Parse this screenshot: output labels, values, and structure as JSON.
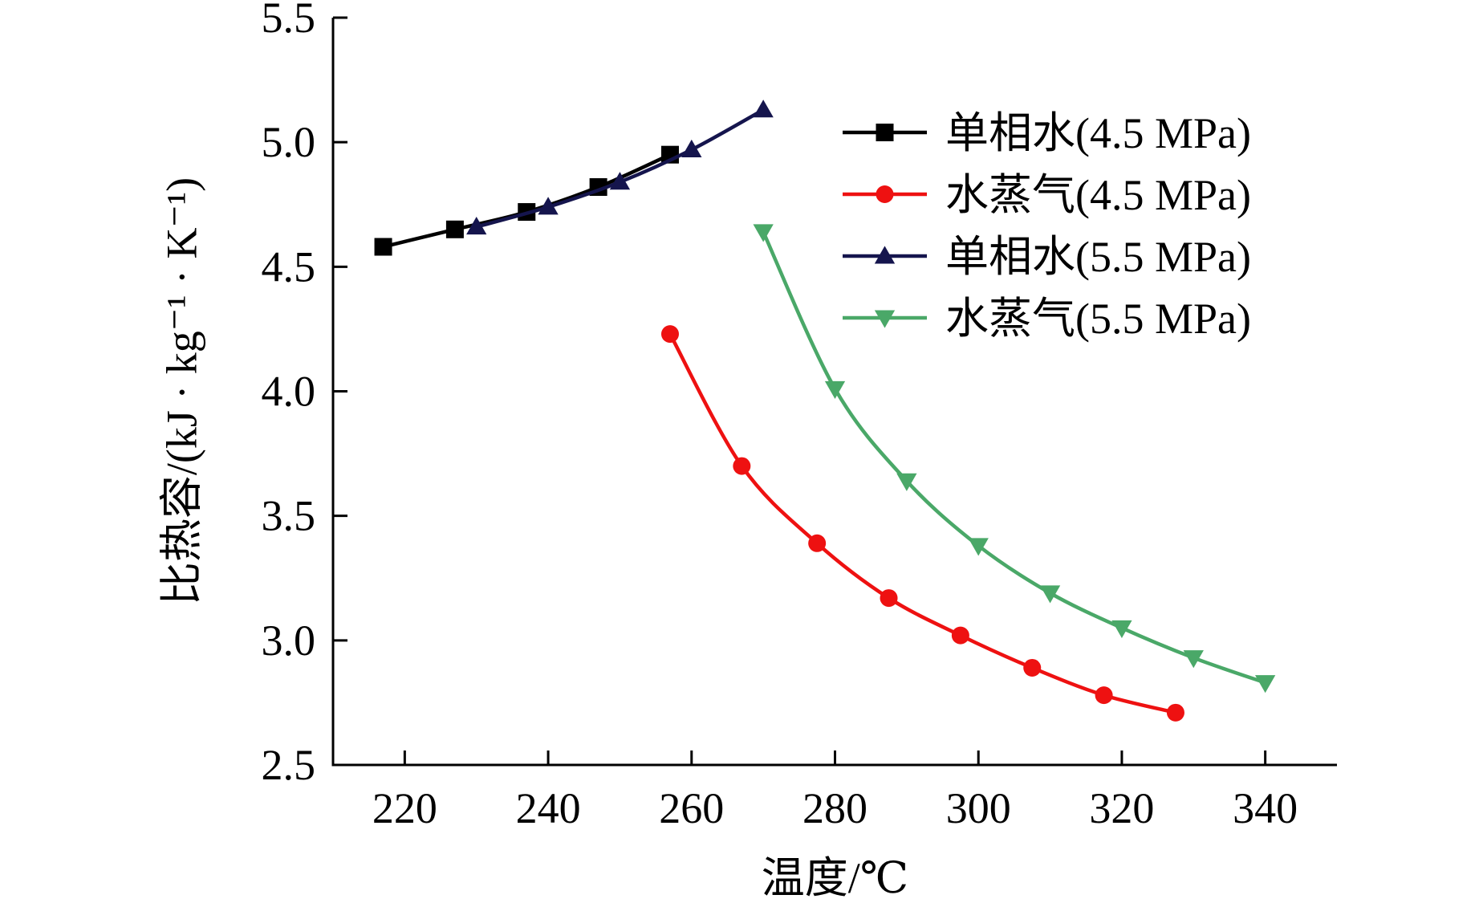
{
  "chart_data": {
    "type": "line",
    "title": "",
    "xlabel": "温度/℃",
    "ylabel": "比热容/(kJ · kg⁻¹ · K⁻¹)",
    "xlim": [
      210,
      350
    ],
    "ylim": [
      2.5,
      5.5
    ],
    "xticks": [
      220,
      240,
      260,
      280,
      300,
      320,
      340
    ],
    "yticks": [
      "2.5",
      "3.0",
      "3.5",
      "4.0",
      "4.5",
      "5.0",
      "5.5"
    ],
    "legend_position": "top-right",
    "series": [
      {
        "name": "单相水(4.5 MPa)",
        "color": "#000000",
        "marker": "square",
        "x": [
          217,
          227,
          237,
          247,
          257
        ],
        "y": [
          4.58,
          4.65,
          4.72,
          4.82,
          4.95
        ]
      },
      {
        "name": "水蒸气(4.5 MPa)",
        "color": "#ee1111",
        "marker": "circle",
        "x": [
          257,
          267,
          277.5,
          287.5,
          297.5,
          307.5,
          317.5,
          327.5
        ],
        "y": [
          4.23,
          3.7,
          3.39,
          3.17,
          3.02,
          2.89,
          2.78,
          2.71
        ]
      },
      {
        "name": "单相水(5.5 MPa)",
        "color": "#15154d",
        "marker": "triangle-up",
        "x": [
          230,
          240,
          250,
          260,
          270
        ],
        "y": [
          4.66,
          4.74,
          4.84,
          4.97,
          5.13
        ]
      },
      {
        "name": "水蒸气(5.5 MPa)",
        "color": "#4aa868",
        "marker": "triangle-down",
        "x": [
          270,
          280,
          290,
          300,
          310,
          320,
          330,
          340
        ],
        "y": [
          4.64,
          4.01,
          3.64,
          3.38,
          3.19,
          3.05,
          2.93,
          2.83
        ]
      }
    ]
  }
}
